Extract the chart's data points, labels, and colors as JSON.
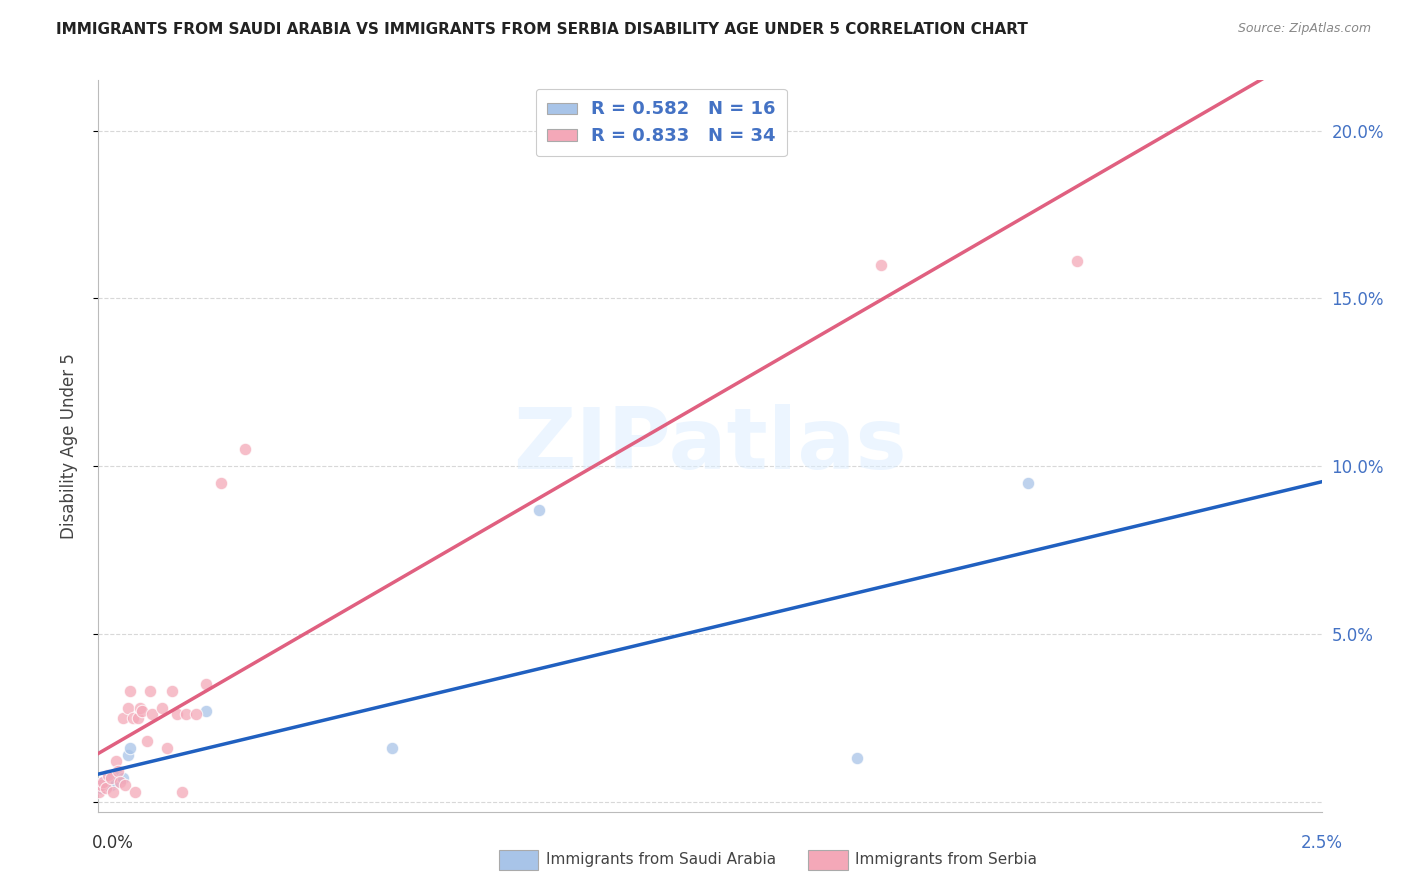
{
  "title": "IMMIGRANTS FROM SAUDI ARABIA VS IMMIGRANTS FROM SERBIA DISABILITY AGE UNDER 5 CORRELATION CHART",
  "source": "Source: ZipAtlas.com",
  "ylabel": "Disability Age Under 5",
  "xmin": 0.0,
  "xmax": 0.025,
  "ymin": -0.003,
  "ymax": 0.215,
  "R_saudi": 0.582,
  "N_saudi": 16,
  "R_serbia": 0.833,
  "N_serbia": 34,
  "saudi_color": "#a8c4e8",
  "serbia_color": "#f4a8b8",
  "saudi_line_color": "#2060c0",
  "serbia_line_color": "#e06080",
  "legend_saudi_label": "Immigrants from Saudi Arabia",
  "legend_serbia_label": "Immigrants from Serbia",
  "saudi_x": [
    5e-05,
    0.0001,
    0.00015,
    0.0002,
    0.00025,
    0.0003,
    0.00035,
    0.0004,
    0.0005,
    0.0006,
    0.00065,
    0.0022,
    0.006,
    0.009,
    0.0155,
    0.019
  ],
  "saudi_y": [
    0.004,
    0.006,
    0.005,
    0.007,
    0.005,
    0.008,
    0.006,
    0.008,
    0.007,
    0.014,
    0.016,
    0.027,
    0.016,
    0.087,
    0.013,
    0.095
  ],
  "serbia_x": [
    2e-05,
    5e-05,
    0.0001,
    0.00015,
    0.0002,
    0.00025,
    0.0003,
    0.00035,
    0.0004,
    0.00045,
    0.0005,
    0.00055,
    0.0006,
    0.00065,
    0.0007,
    0.00075,
    0.0008,
    0.00085,
    0.0009,
    0.001,
    0.00105,
    0.0011,
    0.0013,
    0.0014,
    0.0015,
    0.0016,
    0.0017,
    0.0018,
    0.002,
    0.0022,
    0.0025,
    0.003,
    0.016,
    0.02
  ],
  "serbia_y": [
    0.003,
    0.005,
    0.006,
    0.004,
    0.008,
    0.007,
    0.003,
    0.012,
    0.009,
    0.006,
    0.025,
    0.005,
    0.028,
    0.033,
    0.025,
    0.003,
    0.025,
    0.028,
    0.027,
    0.018,
    0.033,
    0.026,
    0.028,
    0.016,
    0.033,
    0.026,
    0.003,
    0.026,
    0.026,
    0.035,
    0.095,
    0.105,
    0.16,
    0.161
  ],
  "watermark_text": "ZIPatlas",
  "background_color": "#ffffff",
  "grid_color": "#d8d8d8"
}
